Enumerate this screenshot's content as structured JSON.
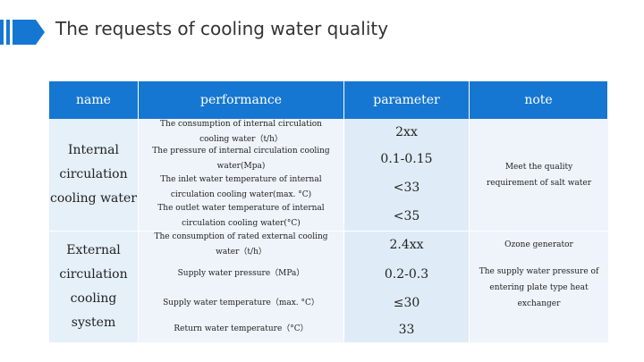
{
  "title": "The requests of cooling water quality",
  "table": {
    "headers": [
      "name",
      "performance",
      "parameter",
      "note"
    ],
    "groups": [
      {
        "name": "Internal circulation cooling water",
        "rows": [
          {
            "performance": "The consumption of internal circulation cooling water（t/h）",
            "parameter": "2xx"
          },
          {
            "performance": "The pressure of internal circulation cooling water(Mpa)",
            "parameter": "0.1-0.15"
          },
          {
            "performance": "The inlet water temperature of internal circulation cooling water(max. °C)",
            "parameter": "<33"
          },
          {
            "performance": "The outlet water temperature of internal circulation cooling water(°C)",
            "parameter": "<35"
          }
        ],
        "note": "Meet the quality requirement of salt water"
      },
      {
        "name": "External circulation cooling system",
        "rows": [
          {
            "performance": "The consumption of rated external cooling water（t/h）",
            "parameter": "2.4xx"
          },
          {
            "performance": "Supply water pressure（MPa）",
            "parameter": "0.2-0.3"
          },
          {
            "performance": "Supply water temperature（max. °C）",
            "parameter": "≤30"
          },
          {
            "performance": "Return water temperature（°C）",
            "parameter": "33"
          }
        ],
        "notes": [
          "Ozone generator",
          "The supply water pressure of entering plate type heat exchanger"
        ]
      }
    ]
  }
}
